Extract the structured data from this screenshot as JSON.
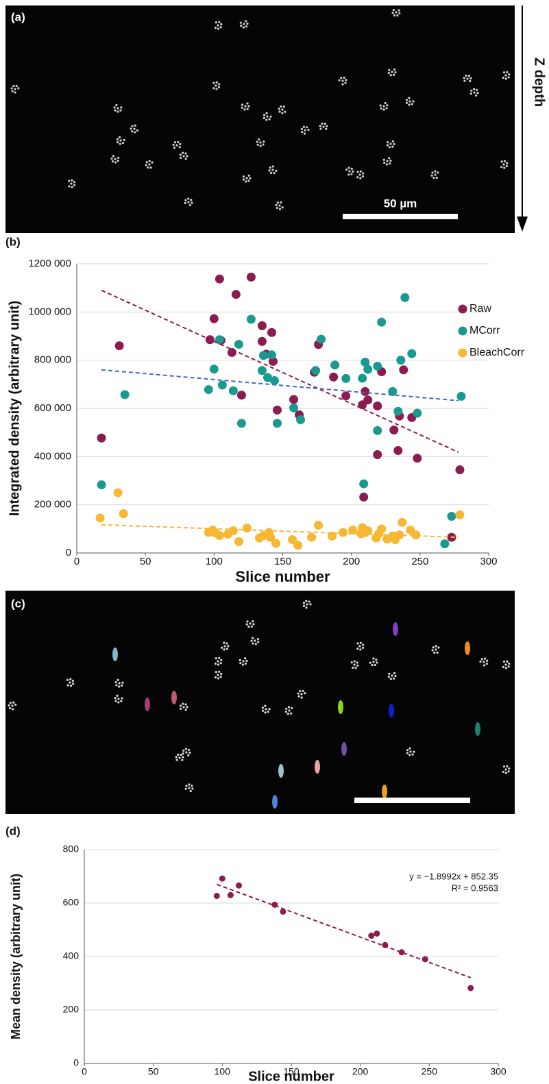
{
  "panels": [
    {
      "label": "(a)",
      "axis_label": "Z depth",
      "scale_label": "50 µm"
    },
    {
      "label": "(b)"
    },
    {
      "label": "(c)"
    },
    {
      "label": "(d)"
    }
  ],
  "chart_data": [
    {
      "type": "scatter",
      "x_label": "Slice number",
      "y_label": "Integrated density (arbitrary unit)",
      "xlim": [
        0,
        300
      ],
      "xticks": [
        0,
        50,
        100,
        150,
        200,
        250,
        300
      ],
      "ylim": [
        0,
        1200000
      ],
      "yticks": [
        0,
        {
          "value": 200000,
          "label": "200 000"
        },
        {
          "value": 400000,
          "label": "400 000"
        },
        {
          "value": 600000,
          "label": "600 000"
        },
        {
          "value": 800000,
          "label": "800 000"
        },
        {
          "value": 1000000,
          "label": "1000 000"
        },
        {
          "value": 1200000,
          "label": "1200 000"
        }
      ],
      "grid": true,
      "legend": "top-right",
      "series": [
        {
          "name": "Raw",
          "color": "#8c1b4f",
          "x": [
            18,
            31,
            97,
            100,
            104,
            105,
            113,
            116,
            120,
            127,
            135,
            135,
            138,
            142,
            143,
            146,
            158,
            162,
            173,
            176,
            187,
            196,
            208,
            209,
            210,
            212,
            219,
            219,
            222,
            231,
            234,
            235,
            238,
            244,
            248,
            273,
            279
          ],
          "values": [
            477000,
            860000,
            885000,
            972000,
            1137000,
            882000,
            832000,
            1073000,
            655000,
            1145000,
            943000,
            878000,
            825000,
            915000,
            795000,
            593000,
            637000,
            573000,
            750000,
            865000,
            730000,
            652000,
            615000,
            232000,
            670000,
            635000,
            408000,
            610000,
            752000,
            510000,
            425000,
            568000,
            760000,
            562000,
            393000,
            65000,
            345000
          ],
          "trend": {
            "color": "#8c1b4f",
            "x": [
              18,
              278
            ],
            "values": [
              1090000,
              418000
            ]
          }
        },
        {
          "name": "MCorr",
          "color": "#1a9990",
          "x": [
            18,
            35,
            96,
            100,
            104,
            106,
            114,
            118,
            120,
            127,
            135,
            136,
            139,
            142,
            144,
            146,
            158,
            163,
            174,
            178,
            188,
            196,
            208,
            209,
            210,
            212,
            219,
            219,
            222,
            230,
            234,
            236,
            239,
            244,
            248,
            268,
            273,
            280
          ],
          "values": [
            283000,
            657000,
            678000,
            763000,
            885000,
            697000,
            673000,
            866000,
            538000,
            970000,
            757000,
            820000,
            728000,
            822000,
            715000,
            538000,
            602000,
            553000,
            757000,
            887000,
            780000,
            724000,
            725000,
            287000,
            792000,
            762000,
            508000,
            775000,
            958000,
            670000,
            588000,
            800000,
            1060000,
            827000,
            580000,
            38000,
            152000,
            650000
          ],
          "trend": {
            "color": "#3d68c6",
            "x": [
              18,
              278
            ],
            "values": [
              760000,
              632000
            ]
          }
        },
        {
          "name": "BleachCorr",
          "color": "#f6b733",
          "x": [
            17,
            30,
            34,
            96,
            99,
            101,
            104,
            110,
            114,
            118,
            124,
            133,
            136,
            140,
            141,
            145,
            157,
            161,
            171,
            176,
            186,
            194,
            201,
            207,
            208,
            210,
            212,
            218,
            220,
            222,
            226,
            230,
            232,
            235,
            237,
            243,
            247,
            279
          ],
          "values": [
            145000,
            250000,
            163000,
            85000,
            95000,
            83000,
            72000,
            78000,
            92000,
            47000,
            103000,
            62000,
            72000,
            85000,
            65000,
            40000,
            55000,
            32000,
            65000,
            115000,
            70000,
            85000,
            95000,
            80000,
            105000,
            85000,
            92000,
            62000,
            80000,
            100000,
            58000,
            70000,
            55000,
            75000,
            127000,
            95000,
            75000,
            158000
          ],
          "trend": {
            "color": "#f6b733",
            "x": [
              18,
              278
            ],
            "values": [
              117000,
              65000
            ]
          }
        }
      ]
    },
    {
      "type": "scatter",
      "x_label": "Slice number",
      "y_label": "Mean density (arbitrary unit)",
      "xlim": [
        0,
        300
      ],
      "xticks": [
        0,
        50,
        100,
        150,
        200,
        250,
        300
      ],
      "ylim": [
        0,
        800
      ],
      "yticks": [
        0,
        200,
        400,
        600,
        800
      ],
      "grid": true,
      "annotations": [
        "y = −1.8992x + 852.35",
        "R² = 0.9563"
      ],
      "series": [
        {
          "color": "#8c1b4f",
          "x": [
            96,
            100,
            106,
            112,
            138,
            144,
            208,
            212,
            218,
            230,
            247,
            280
          ],
          "values": [
            627,
            692,
            630,
            666,
            594,
            568,
            478,
            486,
            443,
            416,
            390,
            282
          ],
          "trend": {
            "color": "#8c1b4f",
            "x": [
              96,
              280
            ],
            "values": [
              670,
              321
            ]
          }
        }
      ]
    }
  ]
}
